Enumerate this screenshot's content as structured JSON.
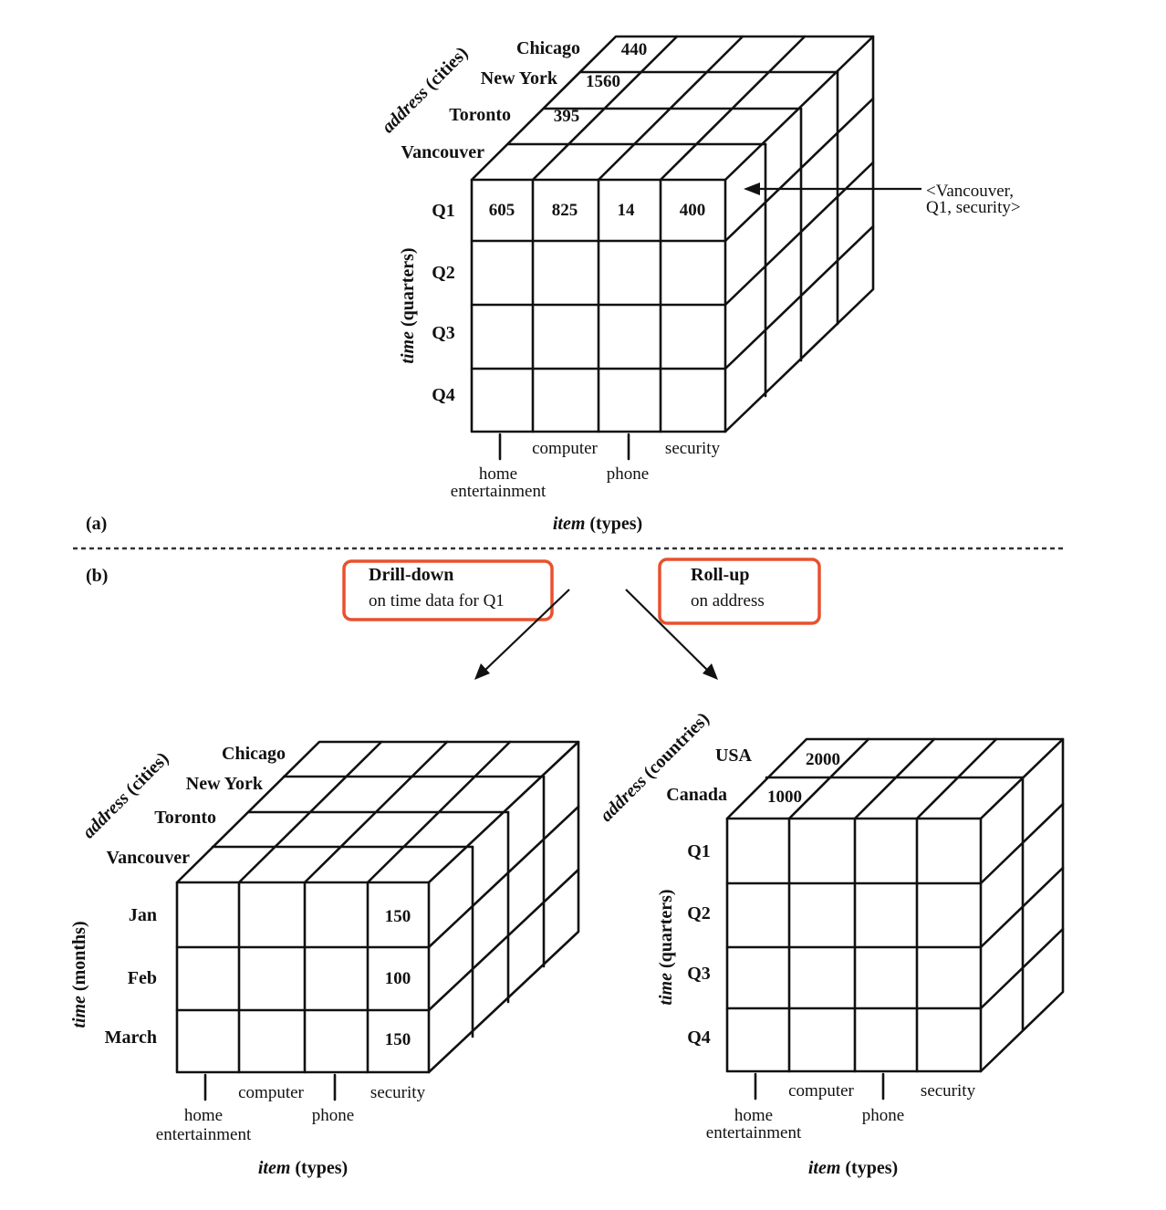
{
  "cube_a": {
    "panel": "(a)",
    "time_axis": {
      "name": "time",
      "unit": "(quarters)"
    },
    "address_axis": {
      "name": "address",
      "unit": "(cities)"
    },
    "item_axis": {
      "name": "item",
      "unit": "(types)"
    },
    "time_labels": [
      "Q1",
      "Q2",
      "Q3",
      "Q4"
    ],
    "city_labels": [
      "Chicago",
      "New York",
      "Toronto",
      "Vancouver"
    ],
    "item_labels": [
      "home",
      "entertainment",
      "computer",
      "phone",
      "security"
    ],
    "front_q1_values": [
      "605",
      "825",
      "14",
      "400"
    ],
    "top_values": {
      "chicago": "440",
      "new_york": "1560",
      "toronto": "395"
    },
    "callout": {
      "line1": "<Vancouver,",
      "line2": "Q1, security>"
    }
  },
  "operations": {
    "panel": "(b)",
    "drill_down": {
      "line1": "Drill-down",
      "line2": "on time data for Q1"
    },
    "roll_up": {
      "line1": "Roll-up",
      "line2": "on address"
    },
    "box_color": "#e8512e"
  },
  "cube_drill": {
    "time_axis": {
      "name": "time",
      "unit": "(months)"
    },
    "address_axis": {
      "name": "address",
      "unit": "(cities)"
    },
    "item_axis": {
      "name": "item",
      "unit": "(types)"
    },
    "time_labels": [
      "Jan",
      "Feb",
      "March"
    ],
    "city_labels": [
      "Chicago",
      "New York",
      "Toronto",
      "Vancouver"
    ],
    "item_labels": [
      "home",
      "entertainment",
      "computer",
      "phone",
      "security"
    ],
    "security_values": [
      "150",
      "100",
      "150"
    ]
  },
  "cube_rollup": {
    "time_axis": {
      "name": "time",
      "unit": "(quarters)"
    },
    "address_axis": {
      "name": "address",
      "unit": "(countries)"
    },
    "item_axis": {
      "name": "item",
      "unit": "(types)"
    },
    "time_labels": [
      "Q1",
      "Q2",
      "Q3",
      "Q4"
    ],
    "country_labels": [
      "USA",
      "Canada"
    ],
    "item_labels": [
      "home",
      "entertainment",
      "computer",
      "phone",
      "security"
    ],
    "top_values": {
      "usa": "2000",
      "canada": "1000"
    }
  }
}
